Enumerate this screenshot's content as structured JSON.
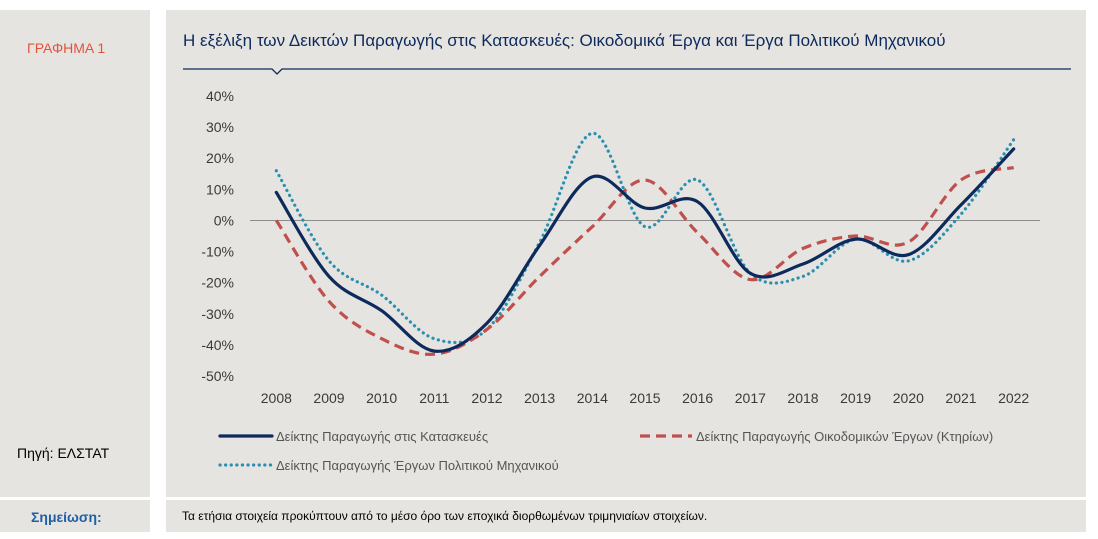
{
  "left_panel": {
    "graph_label": "ΓΡΑΦΗΜΑ 1",
    "source": "Πηγή: ΕΛΣΤΑΤ"
  },
  "note": {
    "label": "Σημείωση:",
    "text": "Τα ετήσια στοιχεία προκύπτουν από το μέσο όρο των εποχικά διορθωμένων τριμηνιαίων στοιχείων."
  },
  "colors": {
    "panel_bg": "#e6e4e0",
    "title": "#0d2a5c",
    "graph_label": "#e0533c",
    "note_label": "#1f5fa8",
    "series_total": "#0d2a5c",
    "series_buildings": "#c0504d",
    "series_civil": "#2b8fb0"
  },
  "chart_data": {
    "type": "line",
    "title": "Η εξέλιξη των Δεικτών Παραγωγής στις Κατασκευές: Οικοδομικά Έργα και Έργα Πολιτικού Μηχανικού",
    "x": [
      "2008",
      "2009",
      "2010",
      "2011",
      "2012",
      "2013",
      "2014",
      "2015",
      "2016",
      "2017",
      "2018",
      "2019",
      "2020",
      "2021",
      "2022"
    ],
    "y_ticks": [
      "40%",
      "30%",
      "20%",
      "10%",
      "0%",
      "-10%",
      "-20%",
      "-30%",
      "-40%",
      "-50%"
    ],
    "ylim": [
      -50,
      40
    ],
    "xlabel": "",
    "ylabel": "",
    "grid": false,
    "zero_line": true,
    "legend_position": "bottom",
    "series": [
      {
        "name": "Δείκτης Παραγωγής στις Κατασκευές",
        "style": "solid",
        "values": [
          9,
          -18,
          -29,
          -42,
          -33,
          -8,
          14,
          4,
          6,
          -17,
          -14,
          -6,
          -11,
          5,
          23
        ]
      },
      {
        "name": "Δείκτης Παραγωγής Οικοδομικών Έργων (Κτηρίων)",
        "style": "dashed",
        "values": [
          0,
          -26,
          -38,
          -43,
          -35,
          -18,
          -2,
          13,
          -4,
          -19,
          -9,
          -5,
          -7,
          13,
          17
        ]
      },
      {
        "name": "Δείκτης Παραγωγής Έργων Πολιτικού Μηχανικού",
        "style": "dotted",
        "values": [
          16,
          -13,
          -24,
          -38,
          -35,
          -7,
          28,
          -2,
          13,
          -17,
          -18,
          -6,
          -13,
          2,
          26
        ]
      }
    ]
  }
}
